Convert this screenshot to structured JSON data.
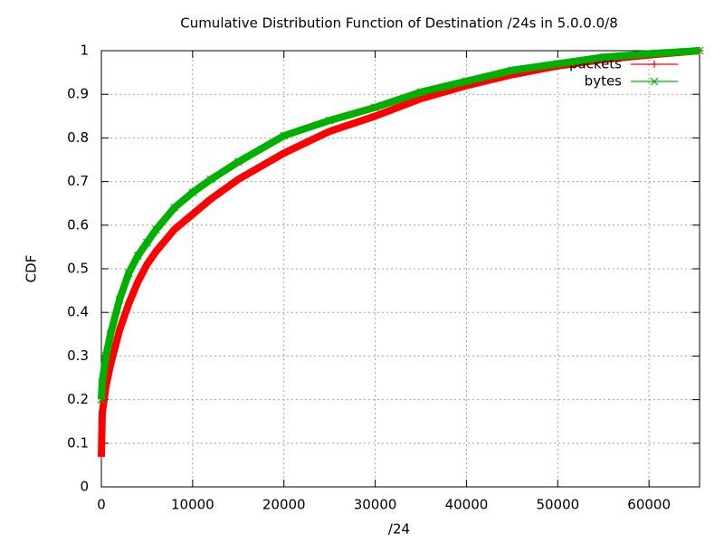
{
  "chart_data": {
    "type": "line",
    "title": "Cumulative Distribution Function of Destination /24s in 5.0.0.0/8",
    "x_label": "/24",
    "y_label": "CDF",
    "x": [
      0,
      100,
      500,
      1000,
      2000,
      3000,
      4000,
      5000,
      6000,
      8000,
      10000,
      12000,
      15000,
      20000,
      25000,
      30000,
      35000,
      40000,
      45000,
      50000,
      55000,
      60000,
      65536
    ],
    "series": [
      {
        "name": "packets",
        "color": "#ff0000",
        "marker": "+",
        "values": [
          0.07,
          0.17,
          0.23,
          0.28,
          0.36,
          0.42,
          0.47,
          0.51,
          0.54,
          0.59,
          0.625,
          0.66,
          0.705,
          0.765,
          0.815,
          0.85,
          0.89,
          0.92,
          0.945,
          0.965,
          0.98,
          0.99,
          1
        ]
      },
      {
        "name": "bytes",
        "color": "#00b000",
        "marker": "x",
        "values": [
          0.2,
          0.24,
          0.3,
          0.35,
          0.43,
          0.49,
          0.53,
          0.56,
          0.59,
          0.64,
          0.675,
          0.705,
          0.745,
          0.805,
          0.84,
          0.87,
          0.905,
          0.93,
          0.955,
          0.97,
          0.985,
          0.993,
          1
        ]
      }
    ],
    "xlim": [
      0,
      65536
    ],
    "ylim": [
      0,
      1
    ],
    "xticks": [
      0,
      10000,
      20000,
      30000,
      40000,
      50000,
      60000
    ],
    "yticks": [
      0,
      0.1,
      0.2,
      0.3,
      0.4,
      0.5,
      0.6,
      0.7,
      0.8,
      0.9,
      1
    ],
    "grid": true,
    "legend": "top-right"
  }
}
